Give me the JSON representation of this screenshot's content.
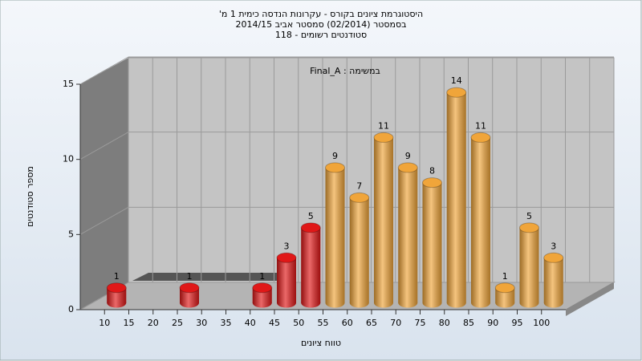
{
  "chart_data": {
    "type": "bar",
    "title": [
      "היסטוגרמת ציונים בקורס - עקרונות הנדסה כימית 1 מ'",
      "בסמסטר (02/2014) סמסטר אביב 2014/15",
      "סטודנטים רשומים - 118"
    ],
    "annotation": "במשימה : Final_A",
    "x_label": "טווח ציונים",
    "y_label": "מספר סטודנטים",
    "x": [
      10,
      25,
      40,
      45,
      50,
      55,
      60,
      65,
      70,
      75,
      80,
      85,
      90,
      95,
      100
    ],
    "values": [
      1,
      1,
      1,
      3,
      5,
      9,
      7,
      11,
      9,
      8,
      14,
      11,
      1,
      5,
      3
    ],
    "colors": [
      "#e01818",
      "#e01818",
      "#e01818",
      "#e01818",
      "#e01818",
      "#f0a53a",
      "#f0a53a",
      "#f0a53a",
      "#f0a53a",
      "#f0a53a",
      "#f0a53a",
      "#f0a53a",
      "#f0a53a",
      "#f0a53a",
      "#f0a53a"
    ],
    "xlim": [
      5,
      105
    ],
    "xticks": [
      10,
      15,
      20,
      25,
      30,
      35,
      40,
      45,
      50,
      55,
      60,
      65,
      70,
      75,
      80,
      85,
      90,
      95,
      100
    ],
    "ylim": [
      0,
      15
    ],
    "yticks": [
      0,
      5,
      10,
      15
    ],
    "grid": true
  }
}
